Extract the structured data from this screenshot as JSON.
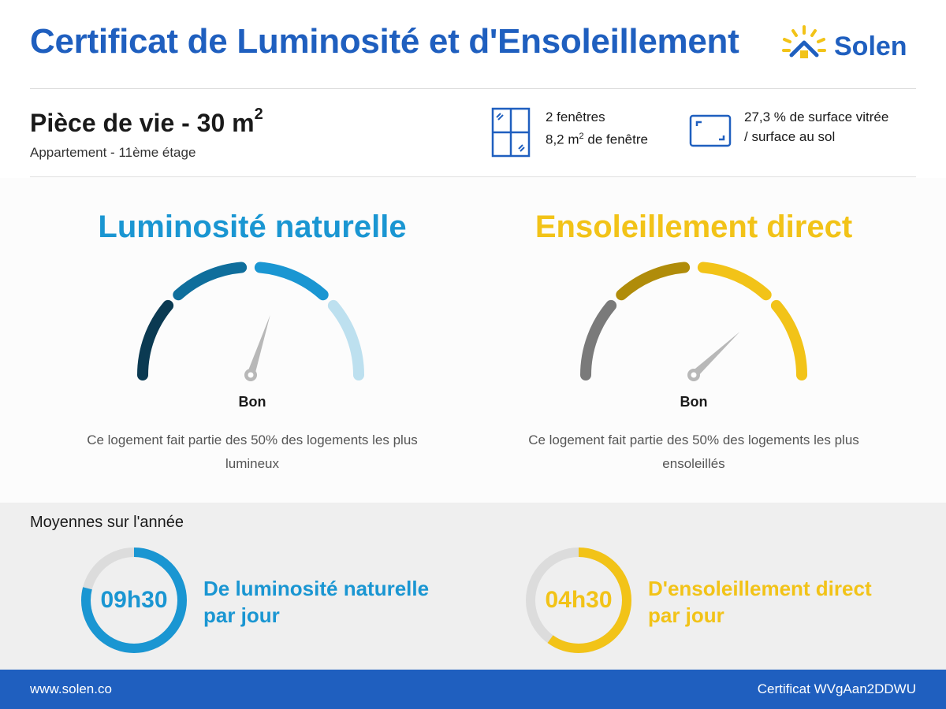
{
  "header": {
    "title": "Certificat de Luminosité et d'Ensoleillement",
    "logo_text": "Solen"
  },
  "room": {
    "title": "Pièce de vie - 30 m",
    "title_sup": "2",
    "subtitle": "Appartement - 11ème étage"
  },
  "windows": {
    "icon": "window-icon",
    "line1": "2 fenêtres",
    "line2_prefix": "8,2 m",
    "line2_sup": "2",
    "line2_suffix": " de fenêtre"
  },
  "glazing": {
    "icon": "frame-icon",
    "line1": "27,3 % de surface vitrée",
    "line2": "/ surface au sol"
  },
  "luminosity": {
    "title": "Luminosité naturelle",
    "rating": "Bon",
    "rating_level": 0.6,
    "description": "Ce logement fait partie des 50% des logements les plus lumineux",
    "color": "#1a96d2",
    "segment_colors": [
      "#0b3a52",
      "#0f6e9c",
      "#1a96d2",
      "#bde0ef"
    ]
  },
  "sunshine": {
    "title": "Ensoleillement direct",
    "rating": "Bon",
    "rating_level": 0.76,
    "description": "Ce logement fait partie des 50% des logements les plus ensoleillés",
    "color": "#f2c318",
    "segment_colors": [
      "#7a7a7a",
      "#b08c0a",
      "#f2c318",
      "#f2c318"
    ]
  },
  "yearly": {
    "title": "Moyennes sur l'année",
    "luminosity": {
      "value": "09h30",
      "fraction": 0.79,
      "label_line1": "De luminosité naturelle",
      "label_line2": "par jour",
      "color": "#1a96d2"
    },
    "sunshine": {
      "value": "04h30",
      "fraction": 0.6,
      "label_line1": "D'ensoleillement direct",
      "label_line2": "par jour",
      "color": "#f2c318"
    }
  },
  "footer": {
    "website": "www.solen.co",
    "certificate": "Certificat WVgAan2DDWU"
  },
  "colors": {
    "brand_blue": "#1f5fbf",
    "ring_track": "#dcdcdc",
    "needle": "#b8b8b8"
  }
}
